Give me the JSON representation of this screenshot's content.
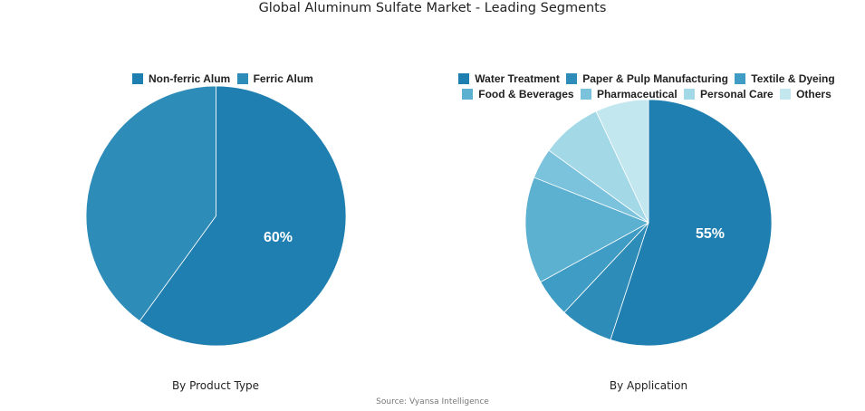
{
  "title": "Global Aluminum Sulfate Market - Leading Segments",
  "source": "Source: Vyansa Intelligence",
  "chart_data": [
    {
      "type": "pie",
      "title": "By Product Type",
      "categories": [
        "Non-ferric Alum",
        "Ferric Alum"
      ],
      "values": [
        60,
        40
      ],
      "colors": [
        "#1f7fb0",
        "#2e8cb8"
      ],
      "data_labels": [
        "60%",
        ""
      ],
      "legend_position": "top"
    },
    {
      "type": "pie",
      "title": "By Application",
      "categories": [
        "Water Treatment",
        "Paper & Pulp Manufacturing",
        "Textile & Dyeing",
        "Food & Beverages",
        "Pharmaceutical",
        "Personal Care",
        "Others"
      ],
      "values": [
        55,
        7,
        5,
        14,
        4,
        8,
        7
      ],
      "colors": [
        "#1f7fb0",
        "#2e8cb8",
        "#3f9cc4",
        "#5cb0d0",
        "#7bc2dc",
        "#a3d8e6",
        "#c3e7ef"
      ],
      "data_labels": [
        "55%",
        "",
        "",
        "",
        "",
        "",
        ""
      ],
      "legend_position": "top"
    }
  ]
}
